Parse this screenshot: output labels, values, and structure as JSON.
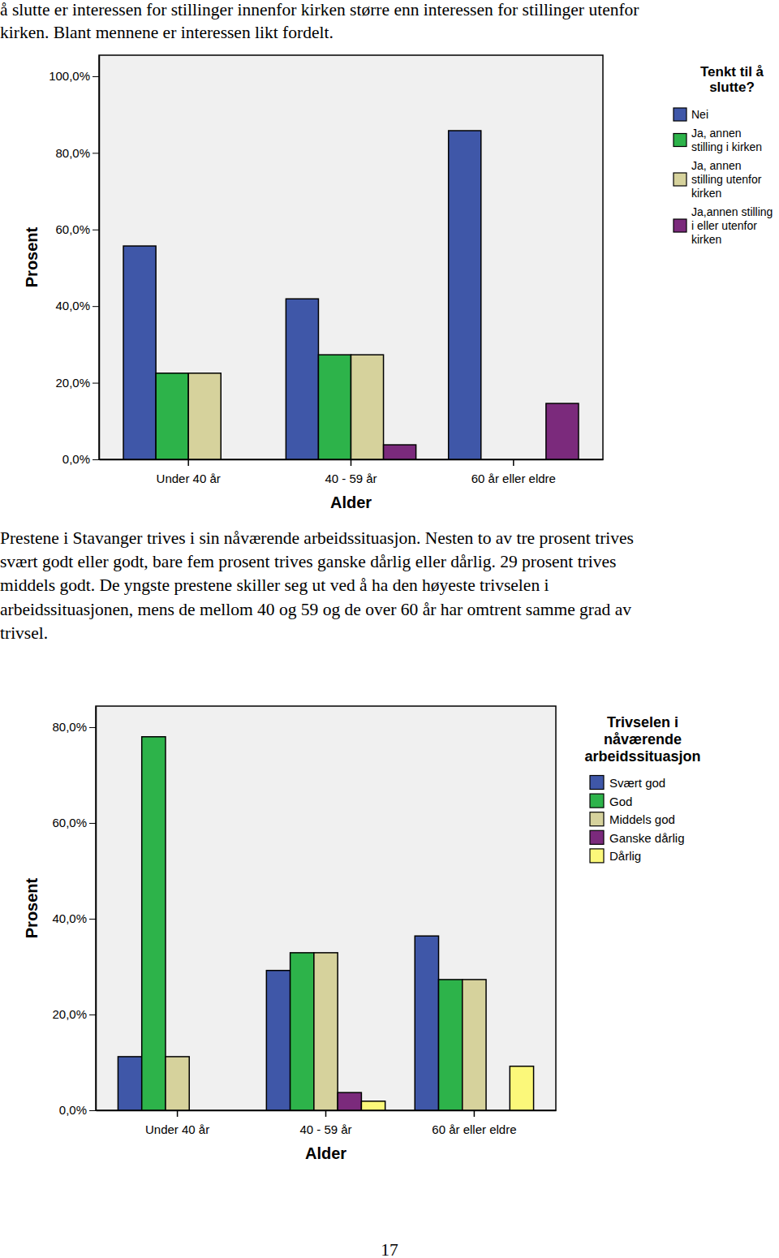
{
  "top_text": [
    "å slutte er interessen for stillinger innenfor kirken større enn interessen for stillinger utenfor",
    "kirken. Blant mennene er interessen likt fordelt."
  ],
  "chart_data": [
    {
      "type": "bar",
      "legend_title": "Tenkt til å slutte?",
      "xlabel": "Alder",
      "ylabel": "Prosent",
      "categories": [
        "Under 40 år",
        "40 - 59 år",
        "60 år eller eldre"
      ],
      "series": [
        {
          "name": "Nei",
          "color": "#3f57a8",
          "values": [
            55.7,
            41.9,
            85.8
          ]
        },
        {
          "name": "Ja, annen stilling i kirken",
          "color": "#2db34a",
          "values": [
            22.5,
            27.3,
            null
          ]
        },
        {
          "name": "Ja, annen stilling utenfor kirken",
          "color": "#d6d29c",
          "values": [
            22.5,
            27.3,
            null
          ]
        },
        {
          "name": "Ja,annen stilling i eller utenfor kirken",
          "color": "#7b2a7c",
          "values": [
            null,
            3.8,
            14.6
          ]
        }
      ],
      "ylim": [
        0,
        105.5
      ],
      "yticks": [
        {
          "value": 0,
          "label": "0,0%"
        },
        {
          "value": 20,
          "label": "20,0%"
        },
        {
          "value": 40,
          "label": "40,0%"
        },
        {
          "value": 60,
          "label": "60,0%"
        },
        {
          "value": 80,
          "label": "80,0%"
        },
        {
          "value": 100,
          "label": "100,0%"
        }
      ],
      "grid": false,
      "legend": "right"
    },
    {
      "type": "bar",
      "legend_title": "Trivselen i nåværende arbeidssituasjon",
      "xlabel": "Alder",
      "ylabel": "Prosent",
      "categories": [
        "Under 40 år",
        "40 - 59 år",
        "60 år eller eldre"
      ],
      "series": [
        {
          "name": "Svært god",
          "color": "#3f57a8",
          "values": [
            11.2,
            29.2,
            36.4
          ]
        },
        {
          "name": "God",
          "color": "#2db34a",
          "values": [
            78.0,
            32.9,
            27.3
          ]
        },
        {
          "name": "Middels god",
          "color": "#d6d29c",
          "values": [
            11.2,
            32.9,
            27.3
          ]
        },
        {
          "name": "Ganske dårlig",
          "color": "#7b2a7c",
          "values": [
            null,
            3.7,
            null
          ]
        },
        {
          "name": "Dårlig",
          "color": "#fbf87a",
          "values": [
            null,
            1.9,
            9.2
          ]
        }
      ],
      "ylim": [
        0,
        84.4
      ],
      "yticks": [
        {
          "value": 0,
          "label": "0,0%"
        },
        {
          "value": 20,
          "label": "20,0%"
        },
        {
          "value": 40,
          "label": "40,0%"
        },
        {
          "value": 60,
          "label": "60,0%"
        },
        {
          "value": 80,
          "label": "80,0%"
        }
      ],
      "grid": false,
      "legend": "right"
    }
  ],
  "paragraph": [
    "Prestene i Stavanger trives i sin nåværende arbeidssituasjon. Nesten to av tre prosent trives",
    "svært godt eller godt, bare fem prosent trives ganske dårlig eller dårlig. 29 prosent trives",
    "middels godt. De yngste prestene skiller seg ut ved å ha den høyeste trivselen i",
    "arbeidssituasjonen, mens de mellom 40 og 59 og de over 60 år har omtrent samme grad av",
    "trivsel."
  ],
  "page_number": "17"
}
